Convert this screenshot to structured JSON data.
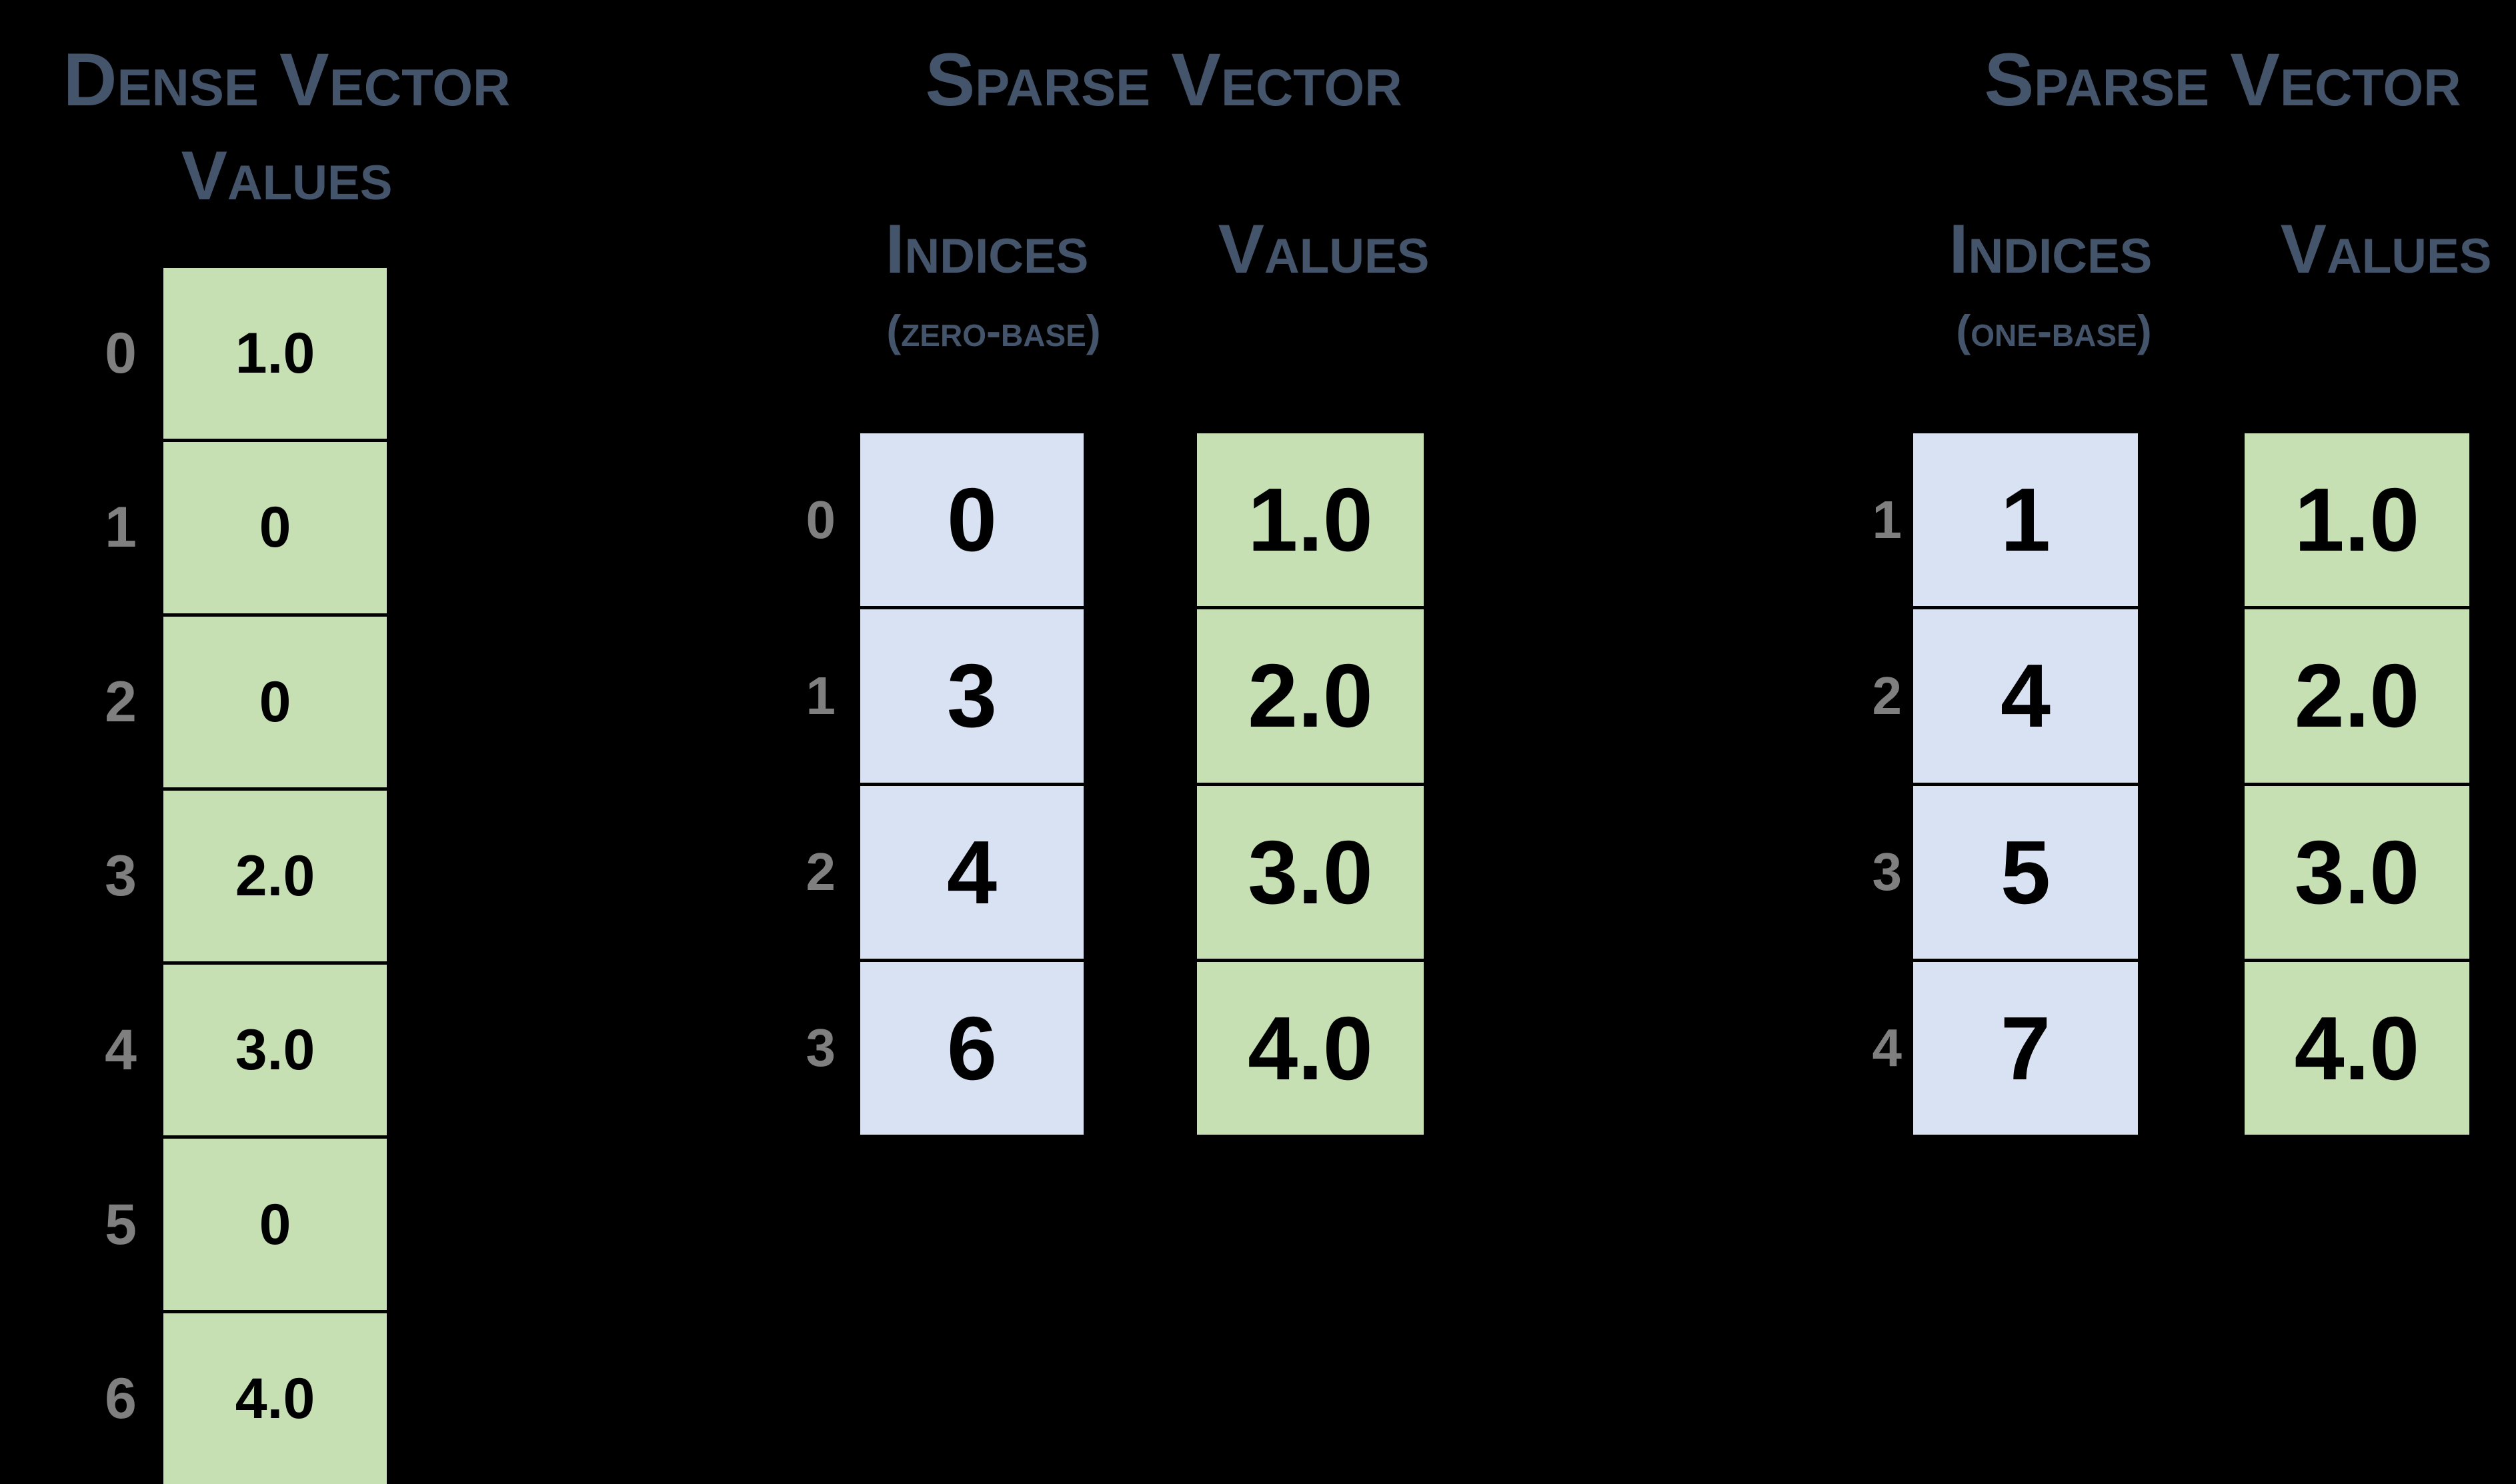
{
  "page": {
    "background": "#000000"
  },
  "colors": {
    "header_text": "#44546A",
    "value_cell": "#C6E0B4",
    "index_cell": "#D9E2F3",
    "row_label": "#7F7F7F",
    "cell_text": "#000000",
    "cell_border": "#000000"
  },
  "dense": {
    "title_line1": "Dense Vector",
    "title_line2": "Values",
    "rows": [
      {
        "index": "0",
        "value": "1.0"
      },
      {
        "index": "1",
        "value": "0"
      },
      {
        "index": "2",
        "value": "0"
      },
      {
        "index": "3",
        "value": "2.0"
      },
      {
        "index": "4",
        "value": "3.0"
      },
      {
        "index": "5",
        "value": "0"
      },
      {
        "index": "6",
        "value": "4.0"
      }
    ]
  },
  "sparse_zero": {
    "title": "Sparse Vector",
    "indices_header": "Indices",
    "indices_subheader": "(zero-base)",
    "values_header": "Values",
    "rows": [
      {
        "label": "0",
        "index": "0",
        "value": "1.0"
      },
      {
        "label": "1",
        "index": "3",
        "value": "2.0"
      },
      {
        "label": "2",
        "index": "4",
        "value": "3.0"
      },
      {
        "label": "3",
        "index": "6",
        "value": "4.0"
      }
    ]
  },
  "sparse_one": {
    "title": "Sparse Vector",
    "indices_header": "Indices",
    "indices_subheader": "(one-base)",
    "values_header": "Values",
    "rows": [
      {
        "label": "1",
        "index": "1",
        "value": "1.0"
      },
      {
        "label": "2",
        "index": "4",
        "value": "2.0"
      },
      {
        "label": "3",
        "index": "5",
        "value": "3.0"
      },
      {
        "label": "4",
        "index": "7",
        "value": "4.0"
      }
    ]
  }
}
